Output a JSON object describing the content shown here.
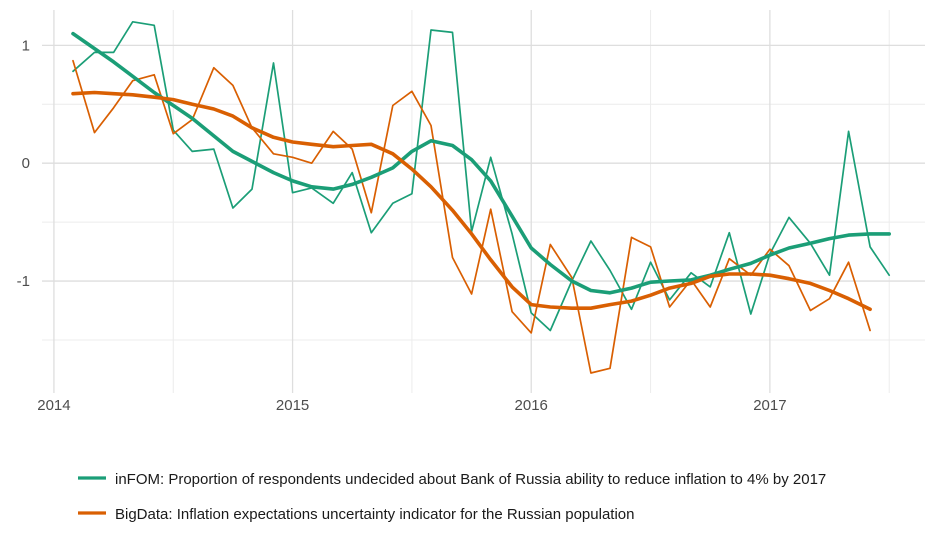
{
  "chart_data": {
    "type": "line",
    "title": "",
    "xlabel": "",
    "ylabel": "",
    "xlim": [
      2013.95,
      2017.65
    ],
    "ylim": [
      -1.95,
      1.3
    ],
    "x_ticks": [
      {
        "value": 2014,
        "label": "2014"
      },
      {
        "value": 2015,
        "label": "2015"
      },
      {
        "value": 2016,
        "label": "2016"
      },
      {
        "value": 2017,
        "label": "2017"
      }
    ],
    "x_minor_ticks": [
      2014.5,
      2015.5,
      2016.5,
      2017.5
    ],
    "y_ticks": [
      {
        "value": 1,
        "label": "1"
      },
      {
        "value": 0,
        "label": "0"
      },
      {
        "value": -1,
        "label": "-1"
      }
    ],
    "y_minor_ticks": [
      0.5,
      -0.5,
      -1.5
    ],
    "grid": true,
    "legend_position": "bottom",
    "series": [
      {
        "name": "inFOM: Proportion of respondents undecided about Bank of Russia ability to reduce inflation to 4% by 2017",
        "color": "#1b9e77",
        "kind": "raw",
        "points": [
          [
            2014.08,
            0.78
          ],
          [
            2014.17,
            0.94
          ],
          [
            2014.25,
            0.94
          ],
          [
            2014.33,
            1.2
          ],
          [
            2014.42,
            1.17
          ],
          [
            2014.5,
            0.28
          ],
          [
            2014.58,
            0.1
          ],
          [
            2014.67,
            0.12
          ],
          [
            2014.75,
            -0.38
          ],
          [
            2014.83,
            -0.22
          ],
          [
            2014.92,
            0.85
          ],
          [
            2015.0,
            -0.25
          ],
          [
            2015.08,
            -0.21
          ],
          [
            2015.17,
            -0.34
          ],
          [
            2015.25,
            -0.08
          ],
          [
            2015.33,
            -0.59
          ],
          [
            2015.42,
            -0.34
          ],
          [
            2015.5,
            -0.26
          ],
          [
            2015.58,
            1.13
          ],
          [
            2015.67,
            1.11
          ],
          [
            2015.75,
            -0.58
          ],
          [
            2015.83,
            0.05
          ],
          [
            2015.92,
            -0.6
          ],
          [
            2016.0,
            -1.27
          ],
          [
            2016.08,
            -1.42
          ],
          [
            2016.17,
            -1.0
          ],
          [
            2016.25,
            -0.66
          ],
          [
            2016.33,
            -0.91
          ],
          [
            2016.42,
            -1.24
          ],
          [
            2016.5,
            -0.84
          ],
          [
            2016.58,
            -1.16
          ],
          [
            2016.67,
            -0.93
          ],
          [
            2016.75,
            -1.05
          ],
          [
            2016.83,
            -0.59
          ],
          [
            2016.92,
            -1.28
          ],
          [
            2017.0,
            -0.77
          ],
          [
            2017.08,
            -0.46
          ],
          [
            2017.17,
            -0.68
          ],
          [
            2017.25,
            -0.95
          ],
          [
            2017.33,
            0.27
          ],
          [
            2017.42,
            -0.71
          ],
          [
            2017.5,
            -0.95
          ]
        ]
      },
      {
        "name": "BigData: Inflation expectations uncertainty indicator for the Russian population",
        "color": "#d95f02",
        "kind": "raw",
        "points": [
          [
            2014.08,
            0.87
          ],
          [
            2014.17,
            0.26
          ],
          [
            2014.25,
            0.47
          ],
          [
            2014.33,
            0.7
          ],
          [
            2014.42,
            0.75
          ],
          [
            2014.5,
            0.25
          ],
          [
            2014.58,
            0.37
          ],
          [
            2014.67,
            0.81
          ],
          [
            2014.75,
            0.66
          ],
          [
            2014.83,
            0.3
          ],
          [
            2014.92,
            0.08
          ],
          [
            2015.0,
            0.05
          ],
          [
            2015.08,
            0.0
          ],
          [
            2015.17,
            0.27
          ],
          [
            2015.25,
            0.12
          ],
          [
            2015.33,
            -0.42
          ],
          [
            2015.42,
            0.49
          ],
          [
            2015.5,
            0.61
          ],
          [
            2015.58,
            0.32
          ],
          [
            2015.67,
            -0.8
          ],
          [
            2015.75,
            -1.11
          ],
          [
            2015.83,
            -0.39
          ],
          [
            2015.92,
            -1.26
          ],
          [
            2016.0,
            -1.44
          ],
          [
            2016.08,
            -0.69
          ],
          [
            2016.17,
            -0.97
          ],
          [
            2016.25,
            -1.78
          ],
          [
            2016.33,
            -1.74
          ],
          [
            2016.42,
            -0.63
          ],
          [
            2016.5,
            -0.71
          ],
          [
            2016.58,
            -1.22
          ],
          [
            2016.67,
            -0.99
          ],
          [
            2016.75,
            -1.22
          ],
          [
            2016.83,
            -0.81
          ],
          [
            2016.92,
            -0.95
          ],
          [
            2017.0,
            -0.73
          ],
          [
            2017.08,
            -0.87
          ],
          [
            2017.17,
            -1.25
          ],
          [
            2017.25,
            -1.15
          ],
          [
            2017.33,
            -0.84
          ],
          [
            2017.42,
            -1.42
          ]
        ]
      },
      {
        "name": "inFOM: Proportion of respondents undecided about Bank of Russia ability to reduce inflation to 4% by 2017",
        "color": "#1b9e77",
        "kind": "smooth",
        "points": [
          [
            2014.08,
            1.1
          ],
          [
            2014.25,
            0.86
          ],
          [
            2014.42,
            0.6
          ],
          [
            2014.58,
            0.38
          ],
          [
            2014.75,
            0.1
          ],
          [
            2014.92,
            -0.08
          ],
          [
            2015.0,
            -0.15
          ],
          [
            2015.08,
            -0.2
          ],
          [
            2015.17,
            -0.22
          ],
          [
            2015.25,
            -0.18
          ],
          [
            2015.33,
            -0.12
          ],
          [
            2015.42,
            -0.04
          ],
          [
            2015.5,
            0.1
          ],
          [
            2015.58,
            0.19
          ],
          [
            2015.67,
            0.15
          ],
          [
            2015.75,
            0.03
          ],
          [
            2015.83,
            -0.15
          ],
          [
            2015.92,
            -0.45
          ],
          [
            2016.0,
            -0.72
          ],
          [
            2016.08,
            -0.86
          ],
          [
            2016.17,
            -1.0
          ],
          [
            2016.25,
            -1.08
          ],
          [
            2016.33,
            -1.1
          ],
          [
            2016.42,
            -1.06
          ],
          [
            2016.5,
            -1.01
          ],
          [
            2016.58,
            -1.0
          ],
          [
            2016.67,
            -0.99
          ],
          [
            2016.75,
            -0.95
          ],
          [
            2016.83,
            -0.9
          ],
          [
            2016.92,
            -0.85
          ],
          [
            2017.0,
            -0.78
          ],
          [
            2017.08,
            -0.72
          ],
          [
            2017.17,
            -0.68
          ],
          [
            2017.25,
            -0.64
          ],
          [
            2017.33,
            -0.61
          ],
          [
            2017.42,
            -0.6
          ],
          [
            2017.5,
            -0.6
          ]
        ]
      },
      {
        "name": "BigData: Inflation expectations uncertainty indicator for the Russian population",
        "color": "#d95f02",
        "kind": "smooth",
        "points": [
          [
            2014.08,
            0.59
          ],
          [
            2014.17,
            0.6
          ],
          [
            2014.25,
            0.59
          ],
          [
            2014.33,
            0.58
          ],
          [
            2014.42,
            0.56
          ],
          [
            2014.5,
            0.54
          ],
          [
            2014.58,
            0.5
          ],
          [
            2014.67,
            0.46
          ],
          [
            2014.75,
            0.4
          ],
          [
            2014.83,
            0.3
          ],
          [
            2014.92,
            0.22
          ],
          [
            2015.0,
            0.18
          ],
          [
            2015.08,
            0.16
          ],
          [
            2015.17,
            0.14
          ],
          [
            2015.25,
            0.15
          ],
          [
            2015.33,
            0.16
          ],
          [
            2015.42,
            0.08
          ],
          [
            2015.5,
            -0.05
          ],
          [
            2015.58,
            -0.2
          ],
          [
            2015.67,
            -0.4
          ],
          [
            2015.75,
            -0.6
          ],
          [
            2015.83,
            -0.82
          ],
          [
            2015.92,
            -1.05
          ],
          [
            2016.0,
            -1.2
          ],
          [
            2016.08,
            -1.22
          ],
          [
            2016.17,
            -1.23
          ],
          [
            2016.25,
            -1.23
          ],
          [
            2016.33,
            -1.2
          ],
          [
            2016.42,
            -1.17
          ],
          [
            2016.5,
            -1.12
          ],
          [
            2016.58,
            -1.06
          ],
          [
            2016.67,
            -1.02
          ],
          [
            2016.75,
            -0.96
          ],
          [
            2016.83,
            -0.94
          ],
          [
            2016.92,
            -0.94
          ],
          [
            2017.0,
            -0.95
          ],
          [
            2017.08,
            -0.98
          ],
          [
            2017.17,
            -1.02
          ],
          [
            2017.25,
            -1.08
          ],
          [
            2017.33,
            -1.15
          ],
          [
            2017.42,
            -1.24
          ]
        ]
      }
    ]
  },
  "legend": {
    "items": [
      {
        "label": "inFOM: Proportion of respondents undecided about Bank of Russia ability to reduce inflation to 4% by 2017",
        "color": "#1b9e77"
      },
      {
        "label": "BigData: Inflation expectations uncertainty indicator for the Russian population",
        "color": "#d95f02"
      }
    ]
  }
}
